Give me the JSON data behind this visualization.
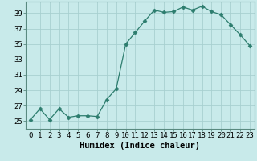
{
  "x": [
    0,
    1,
    2,
    3,
    4,
    5,
    6,
    7,
    8,
    9,
    10,
    11,
    12,
    13,
    14,
    15,
    16,
    17,
    18,
    19,
    20,
    21,
    22,
    23
  ],
  "y": [
    25.2,
    26.6,
    25.2,
    26.6,
    25.5,
    25.7,
    25.7,
    25.6,
    27.8,
    29.2,
    35.0,
    36.5,
    38.0,
    39.4,
    39.1,
    39.2,
    39.8,
    39.4,
    39.9,
    39.2,
    38.8,
    37.5,
    36.2,
    34.8
  ],
  "xlabel": "Humidex (Indice chaleur)",
  "xlim": [
    -0.5,
    23.5
  ],
  "ylim": [
    24.0,
    40.5
  ],
  "yticks": [
    25,
    27,
    29,
    31,
    33,
    35,
    37,
    39
  ],
  "xticks": [
    0,
    1,
    2,
    3,
    4,
    5,
    6,
    7,
    8,
    9,
    10,
    11,
    12,
    13,
    14,
    15,
    16,
    17,
    18,
    19,
    20,
    21,
    22,
    23
  ],
  "line_color": "#2d7d6e",
  "marker": "D",
  "marker_size": 2.5,
  "bg_color": "#c8eaea",
  "grid_color": "#a8d0d0",
  "label_fontsize": 7.5,
  "tick_fontsize": 6.5
}
